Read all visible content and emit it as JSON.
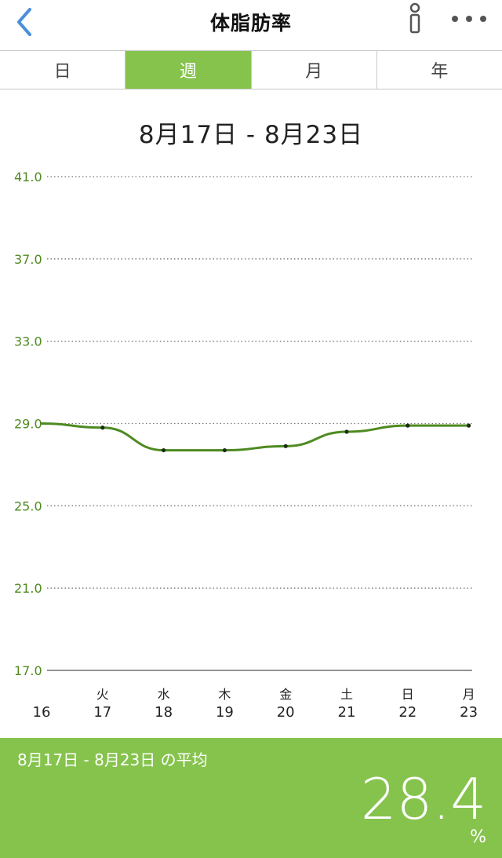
{
  "header": {
    "title": "体脂肪率",
    "back_icon": "chevron-left-icon",
    "info_icon": "info-icon",
    "more_icon": "more-horizontal-icon"
  },
  "tabs": [
    {
      "label": "日",
      "active": false
    },
    {
      "label": "週",
      "active": true
    },
    {
      "label": "月",
      "active": false
    },
    {
      "label": "年",
      "active": false
    }
  ],
  "date_range": "8月17日 - 8月23日",
  "colors": {
    "accent": "#86c34d",
    "line": "#4e8a20",
    "axis_label": "#4e8a20"
  },
  "chart_data": {
    "type": "line",
    "ylim": [
      17.0,
      41.0
    ],
    "yticks": [
      "41.0",
      "37.0",
      "33.0",
      "29.0",
      "25.0",
      "21.0",
      "17.0"
    ],
    "grid": true,
    "x_days": [
      "",
      "火",
      "水",
      "木",
      "金",
      "土",
      "日",
      "月"
    ],
    "x_dates": [
      "16",
      "17",
      "18",
      "19",
      "20",
      "21",
      "22",
      "23"
    ],
    "series": [
      {
        "values": [
          29.0,
          28.8,
          27.7,
          27.7,
          27.9,
          28.6,
          28.9,
          28.9
        ],
        "markers": [
          false,
          true,
          true,
          true,
          true,
          true,
          true,
          true
        ]
      }
    ]
  },
  "summary": {
    "label": "8月17日 - 8月23日 の平均",
    "value": "28.4",
    "unit": "%"
  }
}
